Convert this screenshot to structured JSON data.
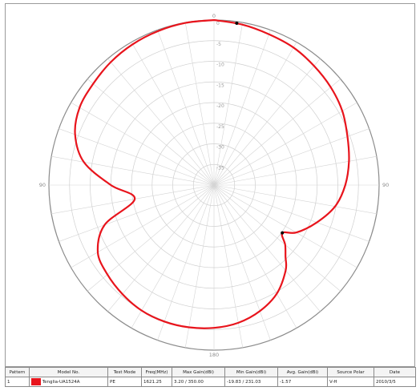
{
  "chart_data": {
    "type": "polar",
    "grid": true,
    "angle_labels": {
      "top": "0",
      "right": "90",
      "bottom": "180",
      "left": "90"
    },
    "r_ticks": [
      "-35",
      "-30",
      "-25",
      "-20",
      "-15",
      "-10",
      "-5",
      "0"
    ],
    "r_range_db": [
      -40,
      0
    ],
    "series": [
      {
        "color": "#e8141c",
        "angles_deg": [
          0,
          10,
          20,
          30,
          40,
          50,
          60,
          70,
          80,
          90,
          100,
          110,
          120,
          125,
          130,
          135,
          140,
          150,
          160,
          170,
          180,
          190,
          200,
          210,
          220,
          230,
          240,
          250,
          260,
          270,
          280,
          290,
          300,
          310,
          320,
          330,
          340,
          350,
          360
        ],
        "gain_db": [
          0,
          -0.5,
          -1.1,
          -1.5,
          -2.3,
          -3.1,
          -4.1,
          -5.6,
          -6.8,
          -8.2,
          -10.2,
          -13.5,
          -17,
          -19.8,
          -17.5,
          -15.5,
          -13,
          -9.6,
          -7.5,
          -6.1,
          -5.4,
          -5,
          -4.8,
          -4.9,
          -5.5,
          -6.3,
          -7.5,
          -11.8,
          -20.5,
          -15,
          -8,
          -4.2,
          -2.4,
          -1.8,
          -1.1,
          -0.6,
          -0.3,
          -0.1,
          0
        ]
      }
    ]
  },
  "legend": {
    "headers": [
      "Pattern",
      "Model No.",
      "Test Mode",
      "Freq(MHz)",
      "Max Gain(dBi)",
      "Min Gain(dBi)",
      "Avg. Gain(dBi)",
      "Source Polar",
      "Date"
    ],
    "rows": [
      {
        "pattern": "1",
        "color": "#e8141c",
        "model": "Tenglia-UA1524A",
        "test_mode": "PE",
        "freq": "1621.25",
        "max_gain": "3.20 / 350.00",
        "min_gain": "-19.83 / 231.03",
        "avg_gain": "-1.57",
        "source_polar": "V-H",
        "date": "2010/3/5"
      }
    ]
  }
}
